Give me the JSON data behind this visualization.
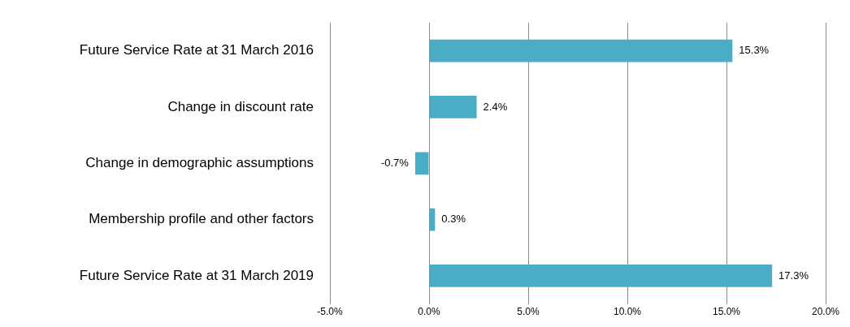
{
  "chart_data": {
    "type": "bar",
    "orientation": "horizontal",
    "categories": [
      "Future Service Rate at 31 March 2016",
      "Change in discount rate",
      "Change in demographic assumptions",
      "Membership profile and other factors",
      "Future Service Rate at 31 March 2019"
    ],
    "values": [
      15.3,
      2.4,
      -0.7,
      0.3,
      17.3
    ],
    "value_labels": [
      "15.3%",
      "2.4%",
      "-0.7%",
      "0.3%",
      "17.3%"
    ],
    "color": "#4bacc6",
    "xlim": [
      -5,
      20
    ],
    "xticks": [
      {
        "value": -5,
        "label": "-5.0%"
      },
      {
        "value": 0,
        "label": "0.0%"
      },
      {
        "value": 5,
        "label": "5.0%"
      },
      {
        "value": 10,
        "label": "10.0%"
      },
      {
        "value": 15,
        "label": "15.0%"
      },
      {
        "value": 20,
        "label": "20.0%"
      }
    ],
    "grid": "x",
    "legend": false
  }
}
